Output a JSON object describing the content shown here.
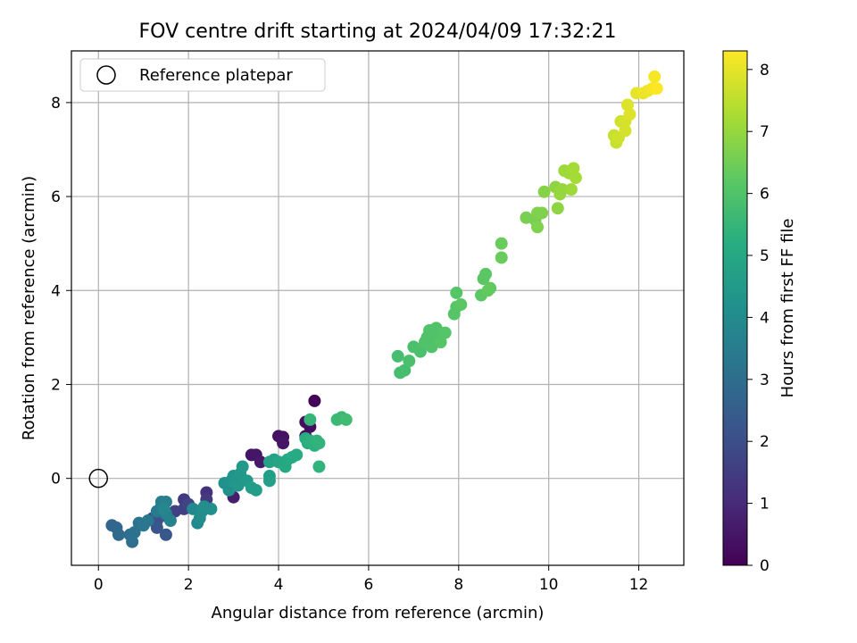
{
  "chart_data": {
    "type": "scatter",
    "title": "FOV centre drift starting at 2024/04/09 17:32:21",
    "xlabel": "Angular distance from reference (arcmin)",
    "ylabel": "Rotation from reference (arcmin)",
    "xlim": [
      -0.6,
      13.0
    ],
    "ylim": [
      -1.85,
      9.1
    ],
    "xticks": [
      0,
      2,
      4,
      6,
      8,
      10,
      12
    ],
    "yticks": [
      0,
      2,
      4,
      6,
      8
    ],
    "grid": true,
    "legend": {
      "placement": "top-left",
      "entries": [
        "Reference platepar"
      ]
    },
    "reference_point": {
      "x": 0,
      "y": 0
    },
    "colorbar": {
      "label": "Hours from first FF file",
      "range": [
        0,
        8.3
      ],
      "ticks": [
        0,
        1,
        2,
        3,
        4,
        5,
        6,
        7,
        8
      ],
      "colormap": "viridis"
    },
    "points": [
      [
        4.8,
        1.65,
        0.1
      ],
      [
        4.6,
        1.2,
        0.3
      ],
      [
        4.7,
        1.1,
        0.3
      ],
      [
        4.6,
        0.9,
        0.3
      ],
      [
        4.7,
        0.8,
        0.4
      ],
      [
        4.0,
        0.9,
        0.4
      ],
      [
        4.1,
        0.88,
        0.4
      ],
      [
        4.1,
        0.75,
        0.5
      ],
      [
        3.4,
        0.5,
        0.5
      ],
      [
        3.5,
        0.5,
        0.5
      ],
      [
        3.6,
        0.35,
        0.6
      ],
      [
        3.0,
        -0.4,
        0.7
      ],
      [
        2.4,
        -0.3,
        1.2
      ],
      [
        2.4,
        -0.45,
        1.4
      ],
      [
        1.9,
        -0.45,
        1.4
      ],
      [
        1.7,
        -0.7,
        1.6
      ],
      [
        1.9,
        -0.65,
        1.6
      ],
      [
        2.0,
        -0.55,
        1.7
      ],
      [
        1.2,
        -0.85,
        2.0
      ],
      [
        1.3,
        -0.9,
        2.1
      ],
      [
        1.3,
        -1.05,
        2.2
      ],
      [
        1.5,
        -1.2,
        2.3
      ],
      [
        1.5,
        -0.8,
        2.4
      ],
      [
        1.4,
        -0.6,
        2.5
      ],
      [
        0.3,
        -1.0,
        2.8
      ],
      [
        0.4,
        -1.05,
        2.8
      ],
      [
        0.45,
        -1.2,
        2.9
      ],
      [
        0.7,
        -1.2,
        3.0
      ],
      [
        0.75,
        -1.35,
        3.0
      ],
      [
        0.8,
        -1.15,
        3.1
      ],
      [
        0.9,
        -0.95,
        3.2
      ],
      [
        1.0,
        -1.0,
        3.3
      ],
      [
        1.1,
        -0.9,
        3.3
      ],
      [
        1.3,
        -0.7,
        3.4
      ],
      [
        1.4,
        -0.5,
        3.5
      ],
      [
        1.5,
        -0.5,
        3.6
      ],
      [
        1.5,
        -0.75,
        3.6
      ],
      [
        1.6,
        -0.9,
        3.7
      ],
      [
        1.45,
        -0.65,
        3.8
      ],
      [
        2.1,
        -0.65,
        3.9
      ],
      [
        2.2,
        -0.95,
        3.9
      ],
      [
        2.25,
        -0.85,
        4.0
      ],
      [
        2.3,
        -0.7,
        4.0
      ],
      [
        2.35,
        -0.6,
        4.1
      ],
      [
        2.5,
        -0.65,
        4.1
      ],
      [
        2.8,
        -0.1,
        4.2
      ],
      [
        2.9,
        -0.25,
        4.2
      ],
      [
        2.95,
        -0.05,
        4.3
      ],
      [
        3.0,
        0.05,
        4.3
      ],
      [
        3.1,
        -0.15,
        4.4
      ],
      [
        3.15,
        0.1,
        4.4
      ],
      [
        3.2,
        0.25,
        4.5
      ],
      [
        3.3,
        -0.05,
        4.5
      ],
      [
        3.4,
        -0.2,
        4.6
      ],
      [
        3.5,
        -0.25,
        4.6
      ],
      [
        3.8,
        -0.05,
        4.7
      ],
      [
        3.8,
        0.05,
        4.7
      ],
      [
        3.8,
        0.35,
        4.8
      ],
      [
        3.9,
        0.4,
        4.8
      ],
      [
        4.0,
        0.35,
        4.9
      ],
      [
        4.15,
        0.25,
        5.0
      ],
      [
        4.2,
        0.4,
        5.0
      ],
      [
        4.3,
        0.45,
        5.1
      ],
      [
        4.4,
        0.5,
        5.1
      ],
      [
        4.6,
        0.85,
        5.2
      ],
      [
        4.65,
        0.75,
        5.2
      ],
      [
        4.7,
        0.8,
        5.3
      ],
      [
        4.8,
        0.7,
        5.3
      ],
      [
        4.85,
        0.8,
        5.4
      ],
      [
        4.9,
        0.75,
        5.4
      ],
      [
        4.9,
        0.25,
        5.4
      ],
      [
        4.7,
        1.25,
        5.5
      ],
      [
        5.3,
        1.25,
        5.6
      ],
      [
        5.4,
        1.3,
        5.6
      ],
      [
        5.5,
        1.25,
        5.7
      ],
      [
        6.65,
        2.6,
        5.8
      ],
      [
        6.7,
        2.25,
        5.8
      ],
      [
        6.8,
        2.3,
        5.8
      ],
      [
        6.9,
        2.5,
        5.9
      ],
      [
        7.0,
        2.8,
        5.9
      ],
      [
        7.15,
        2.7,
        5.9
      ],
      [
        7.25,
        2.9,
        6.0
      ],
      [
        7.3,
        3.0,
        6.0
      ],
      [
        7.35,
        3.15,
        6.0
      ],
      [
        7.4,
        2.8,
        6.0
      ],
      [
        7.45,
        3.05,
        6.0
      ],
      [
        7.5,
        3.2,
        6.0
      ],
      [
        7.6,
        2.9,
        6.1
      ],
      [
        7.7,
        3.1,
        6.1
      ],
      [
        7.9,
        3.5,
        6.1
      ],
      [
        7.95,
        3.65,
        6.1
      ],
      [
        7.95,
        3.95,
        6.1
      ],
      [
        8.05,
        3.7,
        6.2
      ],
      [
        8.5,
        3.9,
        6.2
      ],
      [
        8.55,
        4.25,
        6.2
      ],
      [
        8.6,
        4.35,
        6.2
      ],
      [
        8.65,
        4.0,
        6.3
      ],
      [
        8.7,
        4.05,
        6.3
      ],
      [
        8.95,
        4.7,
        6.4
      ],
      [
        8.95,
        5.0,
        6.4
      ],
      [
        9.5,
        5.55,
        6.6
      ],
      [
        9.7,
        5.5,
        6.6
      ],
      [
        9.75,
        5.35,
        6.7
      ],
      [
        9.75,
        5.65,
        6.7
      ],
      [
        9.85,
        5.65,
        6.7
      ],
      [
        9.9,
        6.1,
        6.8
      ],
      [
        10.15,
        6.2,
        6.9
      ],
      [
        10.2,
        5.75,
        6.9
      ],
      [
        10.25,
        6.05,
        7.0
      ],
      [
        10.3,
        6.15,
        7.0
      ],
      [
        10.35,
        6.55,
        7.1
      ],
      [
        10.45,
        6.5,
        7.1
      ],
      [
        10.5,
        6.15,
        7.1
      ],
      [
        10.55,
        6.6,
        7.2
      ],
      [
        10.6,
        6.4,
        7.2
      ],
      [
        11.45,
        7.3,
        7.6
      ],
      [
        11.5,
        7.15,
        7.6
      ],
      [
        11.55,
        7.25,
        7.7
      ],
      [
        11.6,
        7.6,
        7.7
      ],
      [
        11.7,
        7.4,
        7.8
      ],
      [
        11.7,
        7.6,
        7.8
      ],
      [
        11.75,
        7.95,
        7.9
      ],
      [
        11.8,
        7.75,
        7.9
      ],
      [
        11.95,
        8.2,
        8.0
      ],
      [
        12.1,
        8.2,
        8.1
      ],
      [
        12.2,
        8.25,
        8.1
      ],
      [
        12.3,
        8.3,
        8.2
      ],
      [
        12.35,
        8.55,
        8.2
      ],
      [
        12.4,
        8.3,
        8.3
      ]
    ]
  }
}
